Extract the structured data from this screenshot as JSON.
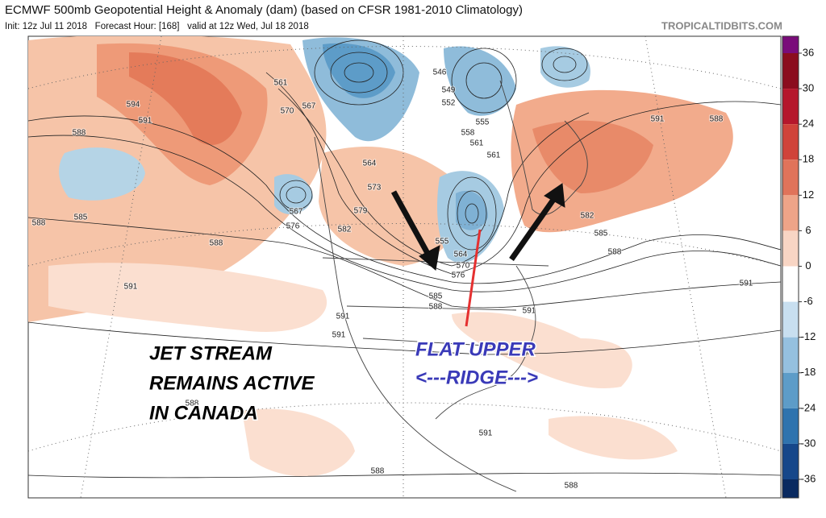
{
  "header": {
    "title": "ECMWF 500mb Geopotential Height & Anomaly (dam) (based on CFSR 1981-2010 Climatology)",
    "subtitle": "Init: 12z Jul 11 2018   Forecast Hour: [168]   valid at 12z Wed, Jul 18 2018",
    "credit": "TROPICALTIDBITS.COM"
  },
  "colorbar": {
    "ticks": [
      36,
      30,
      24,
      18,
      12,
      6,
      0,
      -6,
      -12,
      -18,
      -24,
      -30,
      -36
    ]
  },
  "contour_labels": [
    594,
    591,
    588,
    585,
    588,
    588,
    591,
    561,
    570,
    567,
    567,
    576,
    573,
    579,
    582,
    546,
    549,
    552,
    555,
    558,
    561,
    561,
    564,
    555,
    564,
    570,
    576,
    585,
    588,
    591,
    591,
    591,
    591,
    588,
    582,
    585,
    588,
    591,
    591,
    588,
    588,
    588
  ],
  "annotations": {
    "jet_stream": [
      "JET STREAM",
      "REMAINS ACTIVE",
      "IN CANADA"
    ],
    "ridge": [
      "FLAT UPPER",
      "<---RIDGE--->"
    ]
  }
}
